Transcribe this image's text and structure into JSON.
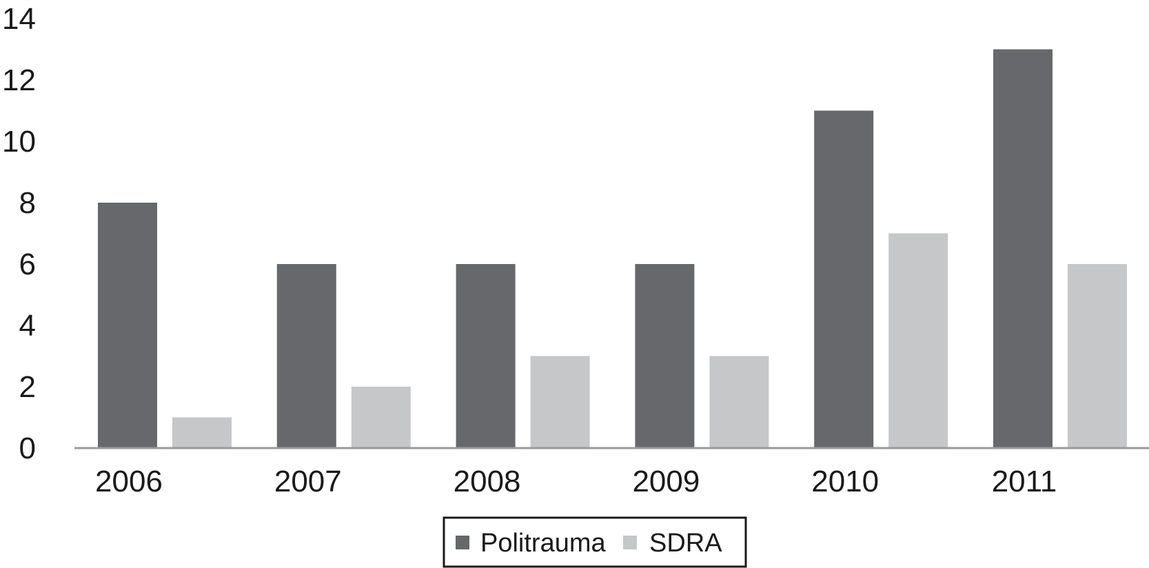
{
  "chart_data": {
    "type": "bar",
    "title": "",
    "xlabel": "",
    "ylabel": "",
    "categories": [
      "2006",
      "2007",
      "2008",
      "2009",
      "2010",
      "2011"
    ],
    "series": [
      {
        "name": "Politrauma",
        "values": [
          8,
          6,
          6,
          6,
          11,
          13
        ],
        "color": "#67686b"
      },
      {
        "name": "SDRA",
        "values": [
          1,
          2,
          3,
          3,
          7,
          6
        ],
        "color": "#c6c7c9"
      }
    ],
    "ylim": [
      0,
      14
    ],
    "yticks": [
      "0",
      "2",
      "4",
      "6",
      "8",
      "10",
      "12",
      "14"
    ],
    "grid": false,
    "legend_position": "bottom-center",
    "axis_color": "#9a9a9a"
  }
}
